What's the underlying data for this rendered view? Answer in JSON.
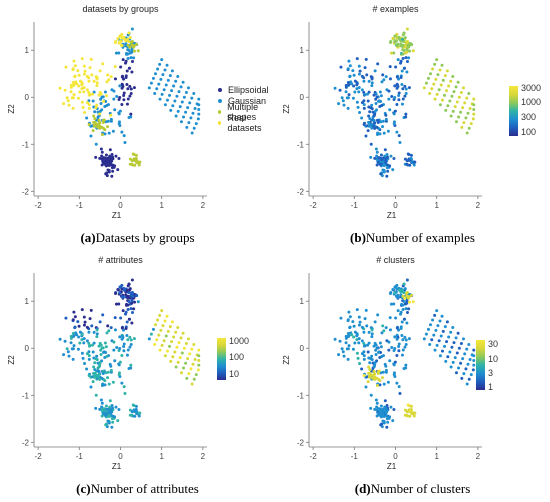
{
  "chart_data": [
    {
      "type": "scatter",
      "title": "datasets by groups",
      "xlabel": "Z1",
      "ylabel": "Z2",
      "xlim": [
        -2.1,
        2.1
      ],
      "ylim": [
        -2.1,
        1.6
      ],
      "xticks": [
        "-2",
        "-1",
        "0",
        "1",
        "2"
      ],
      "yticks": [
        "-2",
        "-1",
        "0",
        "1"
      ],
      "legend": {
        "placement": "right",
        "entries": [
          {
            "name": "Ellipsoidal",
            "color": "#2b2d8f"
          },
          {
            "name": "Gaussian",
            "color": "#1f8fcf"
          },
          {
            "name": "Multiple shapes",
            "color": "#b8c935"
          },
          {
            "name": "Real datasets",
            "color": "#f5e63a"
          }
        ]
      }
    },
    {
      "type": "scatter",
      "title": "# examples",
      "xlabel": "Z1",
      "ylabel": "Z2",
      "xlim": [
        -2.1,
        2.1
      ],
      "ylim": [
        -2.1,
        1.6
      ],
      "xticks": [
        "-2",
        "-1",
        "0",
        "1",
        "2"
      ],
      "yticks": [
        "-2",
        "-1",
        "0",
        "1"
      ],
      "colorbar": {
        "labels": [
          "3000",
          "1000",
          "300",
          "100"
        ],
        "log_scale": true
      }
    },
    {
      "type": "scatter",
      "title": "# attributes",
      "xlabel": "Z1",
      "ylabel": "Z2",
      "xlim": [
        -2.1,
        2.1
      ],
      "ylim": [
        -2.1,
        1.6
      ],
      "xticks": [
        "-2",
        "-1",
        "0",
        "1",
        "2"
      ],
      "yticks": [
        "-2",
        "-1",
        "0",
        "1"
      ],
      "colorbar": {
        "labels": [
          "1000",
          "100",
          "10"
        ],
        "log_scale": true
      }
    },
    {
      "type": "scatter",
      "title": "# clusters",
      "xlabel": "Z1",
      "ylabel": "Z2",
      "xlim": [
        -2.1,
        2.1
      ],
      "ylim": [
        -2.1,
        1.6
      ],
      "xticks": [
        "-2",
        "-1",
        "0",
        "1",
        "2"
      ],
      "yticks": [
        "-2",
        "-1",
        "0",
        "1"
      ],
      "colorbar": {
        "labels": [
          "30",
          "10",
          "3",
          "1"
        ],
        "log_scale": true
      }
    }
  ],
  "captions": [
    {
      "tag": "(a)",
      "text": "Datasets by groups"
    },
    {
      "tag": "(b)",
      "text": "Number of examples"
    },
    {
      "tag": "(c)",
      "text": "Number of attributes"
    },
    {
      "tag": "(d)",
      "text": "Number of clusters"
    }
  ],
  "colors": {
    "viridis_low": "#1f3a93",
    "viridis_mid": "#1f8fcf",
    "viridis_high": "#f5e63a",
    "axis": "#555555"
  }
}
